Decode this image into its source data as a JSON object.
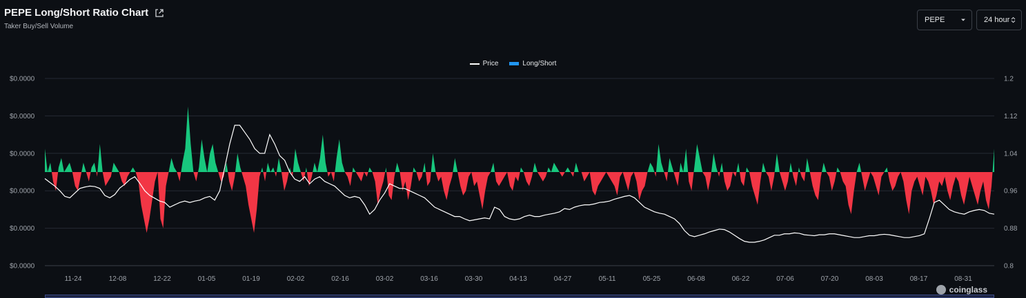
{
  "header": {
    "title": "PEPE Long/Short Ratio Chart",
    "subtitle": "Taker Buy/Sell Volume"
  },
  "controls": {
    "symbol": "PEPE",
    "range": "24 hour"
  },
  "brand": "coinglass",
  "colors": {
    "positive": "#18c77e",
    "negative": "#f23645",
    "price_line": "#ffffff",
    "legend_long_short": "#2196f3",
    "grid": "#252a33",
    "axis_text": "#9ea3aa"
  },
  "chart_data": {
    "type": "area",
    "legend": [
      "Price",
      "Long/Short"
    ],
    "legend_position": "top-center",
    "grid": true,
    "x_ticks": [
      "11-24",
      "12-08",
      "12-22",
      "01-05",
      "01-19",
      "02-02",
      "02-16",
      "03-02",
      "03-16",
      "03-30",
      "04-13",
      "04-27",
      "05-11",
      "05-25",
      "06-08",
      "06-22",
      "07-06",
      "07-20",
      "08-03",
      "08-17",
      "08-31"
    ],
    "y_left_ticks": [
      "$0.0000",
      "$0.0000",
      "$0.0000",
      "$0.0000",
      "$0.0000",
      "$0.0000"
    ],
    "y_right_ticks": [
      "1.2",
      "1.12",
      "1.04",
      "0.96",
      "0.88",
      "0.8"
    ],
    "y_right_range": [
      0.8,
      1.2
    ],
    "baseline": 1.0,
    "series": [
      {
        "name": "Long/Short",
        "axis": "right",
        "values": [
          1.05,
          1.0,
          1.02,
          0.98,
          0.96,
          1.01,
          1.03,
          1.0,
          1.01,
          1.02,
          1.0,
          0.97,
          0.96,
          0.99,
          1.02,
          1.0,
          0.98,
          1.01,
          1.02,
          0.99,
          1.06,
          1.0,
          0.97,
          0.98,
          0.99,
          1.02,
          1.01,
          1.0,
          0.98,
          0.97,
          0.99,
          1.0,
          1.01,
          1.0,
          0.98,
          0.93,
          0.9,
          0.87,
          0.9,
          0.94,
          0.98,
          1.0,
          0.9,
          0.88,
          0.97,
          1.0,
          1.03,
          1.01,
          1.0,
          0.98,
          1.02,
          1.05,
          1.14,
          1.06,
          1.0,
          0.98,
          1.01,
          1.07,
          1.03,
          1.0,
          1.04,
          1.06,
          1.02,
          1.0,
          0.98,
          0.99,
          1.02,
          0.98,
          0.96,
          0.99,
          1.04,
          1.01,
          0.99,
          0.97,
          0.93,
          0.9,
          0.87,
          0.92,
          0.99,
          1.01,
          0.98,
          1.02,
          1.0,
          1.01,
          0.99,
          1.03,
          1.0,
          0.96,
          0.98,
          1.01,
          0.99,
          1.05,
          1.02,
          1.0,
          0.98,
          1.01,
          0.97,
          0.99,
          1.02,
          1.0,
          1.03,
          1.08,
          1.02,
          0.99,
          1.0,
          0.98,
          1.03,
          1.07,
          1.02,
          1.0,
          0.99,
          0.97,
          1.01,
          1.0,
          0.99,
          0.98,
          1.0,
          0.99,
          1.01,
          1.0,
          0.98,
          0.93,
          0.96,
          0.98,
          1.01,
          0.95,
          0.94,
          0.99,
          1.02,
          1.0,
          0.96,
          0.98,
          0.94,
          0.97,
          1.01,
          1.0,
          0.98,
          0.99,
          1.02,
          0.97,
          0.98,
          1.04,
          1.0,
          0.98,
          0.99,
          0.96,
          0.94,
          0.97,
          0.99,
          1.03,
          1.0,
          0.97,
          0.95,
          0.96,
          0.99,
          1.0,
          0.97,
          0.98,
          0.95,
          0.92,
          0.96,
          0.99,
          1.0,
          1.02,
          0.98,
          0.97,
          0.98,
          0.99,
          1.0,
          0.97,
          0.96,
          0.99,
          0.98,
          1.01,
          1.0,
          0.98,
          0.97,
          0.99,
          1.02,
          1.0,
          0.99,
          0.98,
          0.99,
          1.01,
          1.0,
          1.02,
          1.01,
          1.0,
          0.99,
          1.0,
          1.01,
          1.0,
          0.99,
          1.02,
          1.0,
          1.0,
          0.98,
          0.99,
          1.0,
          0.96,
          0.95,
          0.97,
          0.98,
          0.99,
          1.0,
          0.99,
          0.98,
          0.97,
          0.95,
          0.99,
          1.0,
          0.98,
          0.96,
          0.99,
          1.0,
          0.98,
          0.94,
          0.96,
          0.97,
          1.0,
          1.02,
          1.01,
          0.99,
          1.06,
          1.02,
          1.0,
          0.98,
          1.03,
          1.01,
          0.99,
          0.97,
          1.02,
          1.0,
          1.05,
          0.98,
          0.96,
          1.01,
          1.06,
          1.03,
          1.0,
          0.99,
          0.96,
          0.99,
          1.04,
          1.01,
          0.99,
          1.02,
          0.98,
          0.96,
          0.97,
          1.0,
          0.99,
          1.02,
          0.98,
          0.97,
          1.01,
          1.0,
          0.97,
          0.95,
          0.93,
          0.98,
          1.02,
          1.0,
          0.99,
          0.96,
          0.99,
          1.04,
          1.0,
          0.98,
          0.96,
          0.98,
          1.02,
          0.99,
          0.97,
          1.01,
          0.99,
          0.98,
          1.03,
          1.0,
          0.97,
          0.95,
          0.94,
          0.99,
          1.02,
          1.0,
          0.99,
          0.96,
          0.98,
          1.01,
          1.0,
          0.98,
          0.97,
          0.93,
          0.91,
          0.96,
          1.0,
          1.02,
          0.99,
          0.96,
          0.98,
          1.0,
          0.99,
          0.97,
          0.95,
          0.99,
          1.0,
          1.01,
          0.98,
          0.96,
          0.97,
          0.99,
          1.0,
          0.98,
          0.94,
          0.91,
          0.96,
          0.98,
          0.99,
          0.97,
          0.95,
          0.99,
          0.98,
          0.96,
          0.93,
          0.95,
          0.98,
          0.97,
          0.99,
          0.96,
          0.94,
          0.97,
          0.99,
          0.98,
          0.95,
          0.93,
          0.96,
          0.99,
          0.97,
          0.95,
          0.93,
          0.96,
          0.98,
          0.94,
          0.92,
          0.97,
          1.05
        ]
      },
      {
        "name": "Price",
        "axis": "left",
        "values": [
          0.986,
          0.978,
          0.97,
          0.96,
          0.948,
          0.945,
          0.955,
          0.965,
          0.968,
          0.97,
          0.969,
          0.965,
          0.95,
          0.945,
          0.952,
          0.966,
          0.974,
          0.984,
          0.99,
          0.976,
          0.96,
          0.95,
          0.944,
          0.938,
          0.935,
          0.925,
          0.93,
          0.935,
          0.938,
          0.935,
          0.938,
          0.94,
          0.945,
          0.948,
          0.94,
          0.96,
          1.01,
          1.06,
          1.1,
          1.1,
          1.085,
          1.07,
          1.05,
          1.04,
          1.04,
          1.08,
          1.06,
          1.035,
          1.025,
          1.0,
          0.985,
          0.98,
          0.99,
          0.975,
          0.985,
          0.99,
          0.98,
          0.975,
          0.97,
          0.96,
          0.95,
          0.945,
          0.948,
          0.945,
          0.93,
          0.91,
          0.92,
          0.94,
          0.955,
          0.975,
          0.97,
          0.965,
          0.965,
          0.96,
          0.955,
          0.95,
          0.945,
          0.935,
          0.925,
          0.92,
          0.915,
          0.91,
          0.905,
          0.905,
          0.9,
          0.896,
          0.898,
          0.9,
          0.902,
          0.9,
          0.925,
          0.92,
          0.905,
          0.9,
          0.898,
          0.9,
          0.905,
          0.908,
          0.905,
          0.905,
          0.908,
          0.91,
          0.912,
          0.915,
          0.922,
          0.92,
          0.925,
          0.928,
          0.93,
          0.93,
          0.932,
          0.935,
          0.936,
          0.938,
          0.942,
          0.945,
          0.948,
          0.95,
          0.945,
          0.935,
          0.925,
          0.92,
          0.915,
          0.912,
          0.91,
          0.905,
          0.9,
          0.89,
          0.875,
          0.865,
          0.862,
          0.865,
          0.868,
          0.872,
          0.875,
          0.878,
          0.877,
          0.872,
          0.865,
          0.858,
          0.852,
          0.85,
          0.85,
          0.852,
          0.855,
          0.86,
          0.865,
          0.865,
          0.868,
          0.868,
          0.87,
          0.869,
          0.866,
          0.865,
          0.864,
          0.866,
          0.866,
          0.868,
          0.868,
          0.866,
          0.864,
          0.862,
          0.86,
          0.86,
          0.862,
          0.864,
          0.864,
          0.866,
          0.867,
          0.866,
          0.864,
          0.862,
          0.86,
          0.86,
          0.862,
          0.864,
          0.868,
          0.9,
          0.935,
          0.94,
          0.93,
          0.92,
          0.915,
          0.912,
          0.91,
          0.915,
          0.918,
          0.92,
          0.918,
          0.912,
          0.91
        ]
      }
    ]
  }
}
